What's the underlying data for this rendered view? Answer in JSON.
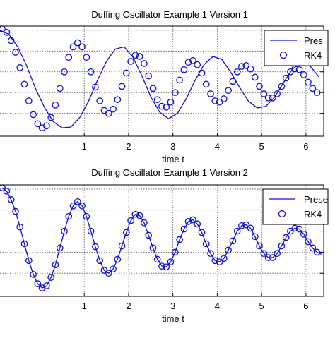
{
  "chart_data": [
    {
      "type": "line",
      "title": "Duffing Oscillator Example 1 Version 1",
      "xlabel": "time t",
      "ylabel": "",
      "xlim": [
        -0.9,
        6.4
      ],
      "ylim": [
        -1.3,
        1.35
      ],
      "xticks": [
        1,
        2,
        3,
        4,
        5,
        6
      ],
      "xtick_labels": [
        "1",
        "2",
        "3",
        "4",
        "5",
        "6"
      ],
      "yticks": [
        -0.75,
        -0.25,
        0.25,
        0.75,
        1.25
      ],
      "grid": true,
      "legend": {
        "position": "top-right",
        "entries": [
          "Pres",
          "RK4"
        ]
      },
      "series": [
        {
          "name": "Pres",
          "style": "line",
          "color": "#1010d0",
          "x": [
            -0.9,
            -0.7,
            -0.5,
            -0.3,
            -0.1,
            0.1,
            0.3,
            0.5,
            0.7,
            0.9,
            1.1,
            1.3,
            1.5,
            1.7,
            1.9,
            2.1,
            2.3,
            2.5,
            2.7,
            2.9,
            3.1,
            3.3,
            3.5,
            3.7,
            3.9,
            4.1,
            4.3,
            4.5,
            4.7,
            4.9,
            5.1,
            5.3,
            5.5,
            5.7,
            5.9,
            6.1,
            6.3
          ],
          "y": [
            1.25,
            1.15,
            0.85,
            0.4,
            -0.15,
            -0.6,
            -0.95,
            -1.1,
            -1.08,
            -0.85,
            -0.45,
            0.05,
            0.5,
            0.8,
            0.85,
            0.6,
            0.15,
            -0.35,
            -0.72,
            -0.88,
            -0.75,
            -0.4,
            0.05,
            0.42,
            0.62,
            0.55,
            0.25,
            -0.12,
            -0.45,
            -0.62,
            -0.58,
            -0.35,
            0.0,
            0.32,
            0.48,
            0.38,
            0.12
          ]
        },
        {
          "name": "RK4",
          "style": "markers",
          "marker": "circle-open",
          "color": "#1010d0",
          "x": [
            -0.85,
            -0.75,
            -0.65,
            -0.55,
            -0.45,
            -0.35,
            -0.25,
            -0.15,
            -0.05,
            0.05,
            0.15,
            0.25,
            0.35,
            0.45,
            0.55,
            0.65,
            0.75,
            0.85,
            0.95,
            1.05,
            1.15,
            1.25,
            1.35,
            1.45,
            1.55,
            1.65,
            1.75,
            1.85,
            1.95,
            2.05,
            2.15,
            2.25,
            2.35,
            2.45,
            2.55,
            2.65,
            2.75,
            2.85,
            2.95,
            3.05,
            3.15,
            3.25,
            3.35,
            3.45,
            3.55,
            3.65,
            3.75,
            3.85,
            3.95,
            4.05,
            4.15,
            4.25,
            4.35,
            4.45,
            4.55,
            4.65,
            4.75,
            4.85,
            4.95,
            5.05,
            5.15,
            5.25,
            5.35,
            5.45,
            5.55,
            5.65,
            5.75,
            5.85,
            5.95,
            6.05,
            6.15,
            6.25
          ],
          "y": [
            1.28,
            1.2,
            1.0,
            0.72,
            0.35,
            -0.05,
            -0.45,
            -0.78,
            -1.0,
            -1.1,
            -1.05,
            -0.85,
            -0.55,
            -0.15,
            0.25,
            0.6,
            0.85,
            0.95,
            0.85,
            0.6,
            0.25,
            -0.12,
            -0.45,
            -0.68,
            -0.75,
            -0.65,
            -0.42,
            -0.1,
            0.22,
            0.5,
            0.65,
            0.62,
            0.45,
            0.15,
            -0.15,
            -0.42,
            -0.58,
            -0.6,
            -0.48,
            -0.25,
            0.05,
            0.3,
            0.48,
            0.52,
            0.42,
            0.22,
            -0.05,
            -0.28,
            -0.45,
            -0.48,
            -0.4,
            -0.2,
            0.02,
            0.25,
            0.38,
            0.4,
            0.32,
            0.12,
            -0.1,
            -0.28,
            -0.38,
            -0.38,
            -0.28,
            -0.1,
            0.1,
            0.25,
            0.32,
            0.3,
            0.18,
            0.0,
            -0.15,
            -0.25
          ]
        }
      ]
    },
    {
      "type": "line",
      "title": "Duffing Oscillator Example 1 Version 2",
      "xlabel": "time t",
      "ylabel": "",
      "xlim": [
        -0.9,
        6.4
      ],
      "ylim": [
        -1.3,
        1.35
      ],
      "xticks": [
        1,
        2,
        3,
        4,
        5,
        6
      ],
      "xtick_labels": [
        "1",
        "2",
        "3",
        "4",
        "5",
        "6"
      ],
      "yticks": [
        -0.75,
        -0.25,
        0.25,
        0.75,
        1.25
      ],
      "grid": true,
      "legend": {
        "position": "top-right",
        "entries": [
          "Prese",
          "RK4"
        ]
      },
      "series": [
        {
          "name": "Prese",
          "style": "line",
          "color": "#1010d0",
          "x": [
            -0.85,
            -0.75,
            -0.65,
            -0.55,
            -0.45,
            -0.35,
            -0.25,
            -0.15,
            -0.05,
            0.05,
            0.15,
            0.25,
            0.35,
            0.45,
            0.55,
            0.65,
            0.75,
            0.85,
            0.95,
            1.05,
            1.15,
            1.25,
            1.35,
            1.45,
            1.55,
            1.65,
            1.75,
            1.85,
            1.95,
            2.05,
            2.15,
            2.25,
            2.35,
            2.45,
            2.55,
            2.65,
            2.75,
            2.85,
            2.95,
            3.05,
            3.15,
            3.25,
            3.35,
            3.45,
            3.55,
            3.65,
            3.75,
            3.85,
            3.95,
            4.05,
            4.15,
            4.25,
            4.35,
            4.45,
            4.55,
            4.65,
            4.75,
            4.85,
            4.95,
            5.05,
            5.15,
            5.25,
            5.35,
            5.45,
            5.55,
            5.65,
            5.75,
            5.85,
            5.95,
            6.05,
            6.15,
            6.25,
            6.35
          ],
          "y": [
            1.28,
            1.2,
            1.0,
            0.72,
            0.35,
            -0.05,
            -0.45,
            -0.78,
            -1.0,
            -1.1,
            -1.05,
            -0.85,
            -0.55,
            -0.15,
            0.25,
            0.6,
            0.85,
            0.95,
            0.85,
            0.6,
            0.25,
            -0.12,
            -0.45,
            -0.68,
            -0.75,
            -0.65,
            -0.42,
            -0.1,
            0.22,
            0.5,
            0.65,
            0.62,
            0.45,
            0.15,
            -0.15,
            -0.42,
            -0.58,
            -0.6,
            -0.48,
            -0.25,
            0.05,
            0.3,
            0.48,
            0.52,
            0.42,
            0.22,
            -0.05,
            -0.28,
            -0.45,
            -0.48,
            -0.4,
            -0.2,
            0.02,
            0.25,
            0.38,
            0.4,
            0.32,
            0.12,
            -0.1,
            -0.28,
            -0.38,
            -0.38,
            -0.28,
            -0.1,
            0.1,
            0.25,
            0.32,
            0.3,
            0.18,
            0.0,
            -0.15,
            -0.25,
            -0.3
          ]
        },
        {
          "name": "RK4",
          "style": "markers",
          "marker": "circle-open",
          "color": "#1010d0",
          "x": [
            -0.85,
            -0.75,
            -0.65,
            -0.55,
            -0.45,
            -0.35,
            -0.25,
            -0.15,
            -0.05,
            0.05,
            0.15,
            0.25,
            0.35,
            0.45,
            0.55,
            0.65,
            0.75,
            0.85,
            0.95,
            1.05,
            1.15,
            1.25,
            1.35,
            1.45,
            1.55,
            1.65,
            1.75,
            1.85,
            1.95,
            2.05,
            2.15,
            2.25,
            2.35,
            2.45,
            2.55,
            2.65,
            2.75,
            2.85,
            2.95,
            3.05,
            3.15,
            3.25,
            3.35,
            3.45,
            3.55,
            3.65,
            3.75,
            3.85,
            3.95,
            4.05,
            4.15,
            4.25,
            4.35,
            4.45,
            4.55,
            4.65,
            4.75,
            4.85,
            4.95,
            5.05,
            5.15,
            5.25,
            5.35,
            5.45,
            5.55,
            5.65,
            5.75,
            5.85,
            5.95,
            6.05,
            6.15,
            6.25
          ],
          "y": [
            1.28,
            1.2,
            1.0,
            0.72,
            0.35,
            -0.05,
            -0.45,
            -0.78,
            -1.0,
            -1.1,
            -1.05,
            -0.85,
            -0.55,
            -0.15,
            0.25,
            0.6,
            0.85,
            0.95,
            0.85,
            0.6,
            0.25,
            -0.12,
            -0.45,
            -0.68,
            -0.75,
            -0.65,
            -0.42,
            -0.1,
            0.22,
            0.5,
            0.65,
            0.62,
            0.45,
            0.15,
            -0.15,
            -0.42,
            -0.58,
            -0.6,
            -0.48,
            -0.25,
            0.05,
            0.3,
            0.48,
            0.52,
            0.42,
            0.22,
            -0.05,
            -0.28,
            -0.45,
            -0.48,
            -0.4,
            -0.2,
            0.02,
            0.25,
            0.38,
            0.4,
            0.32,
            0.12,
            -0.1,
            -0.28,
            -0.38,
            -0.38,
            -0.28,
            -0.1,
            0.1,
            0.25,
            0.32,
            0.3,
            0.18,
            0.0,
            -0.15,
            -0.25
          ]
        }
      ]
    }
  ]
}
